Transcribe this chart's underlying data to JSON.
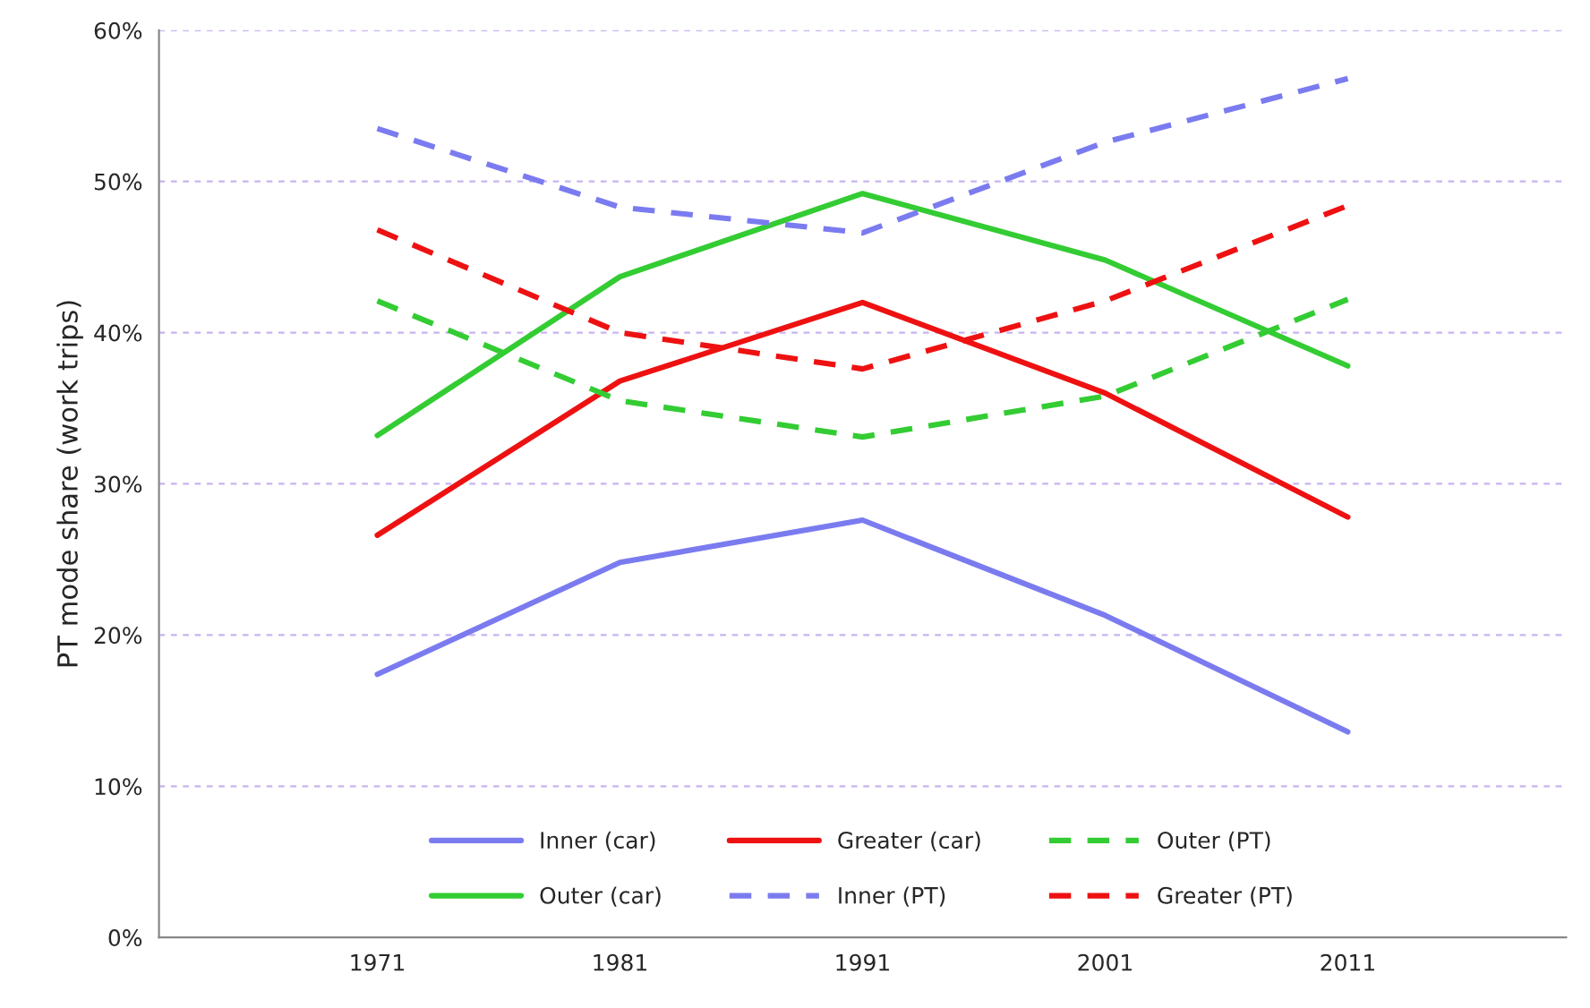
{
  "chart_data": {
    "type": "line",
    "ylabel": "PT mode share (work trips)",
    "categories": [
      "1971",
      "1981",
      "1991",
      "2001",
      "2011"
    ],
    "ylim": [
      0,
      60
    ],
    "yticks": [
      {
        "value": 0,
        "label": "0%"
      },
      {
        "value": 10,
        "label": "10%"
      },
      {
        "value": 20,
        "label": "20%"
      },
      {
        "value": 30,
        "label": "30%"
      },
      {
        "value": 40,
        "label": "40%"
      },
      {
        "value": 50,
        "label": "50%"
      },
      {
        "value": 60,
        "label": "60%"
      }
    ],
    "grid": "y",
    "legend": "bottom",
    "series": [
      {
        "name": "Inner (car)",
        "color": "#7b7bf0",
        "line_style": "solid",
        "values": [
          17.4,
          24.8,
          27.6,
          21.3,
          13.6
        ]
      },
      {
        "name": "Outer (car)",
        "color": "#33cc33",
        "line_style": "solid",
        "values": [
          33.2,
          43.7,
          49.2,
          44.8,
          37.8
        ]
      },
      {
        "name": "Greater (car)",
        "color": "#ee1111",
        "line_style": "solid",
        "values": [
          26.6,
          36.8,
          42.0,
          36.0,
          27.8
        ]
      },
      {
        "name": "Inner (PT)",
        "color": "#7b7bf0",
        "line_style": "dashed",
        "values": [
          53.5,
          48.3,
          46.6,
          52.6,
          56.8
        ]
      },
      {
        "name": "Outer (PT)",
        "color": "#33cc33",
        "line_style": "dashed",
        "values": [
          42.1,
          35.5,
          33.1,
          35.8,
          42.2
        ]
      },
      {
        "name": "Greater (PT)",
        "color": "#ee1111",
        "line_style": "dashed",
        "values": [
          46.8,
          40.0,
          37.6,
          42.1,
          48.4
        ]
      }
    ]
  }
}
